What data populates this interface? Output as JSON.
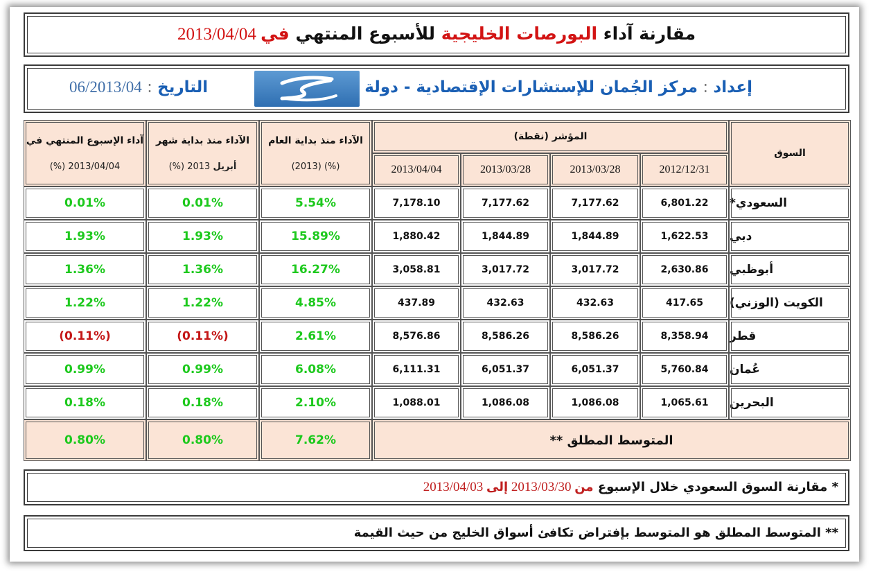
{
  "title": {
    "part1": "مقارنة آداء ",
    "part2": "البورصات الخليجية",
    "part3": " للأسبوع المنتهي ",
    "part4": "في",
    "date": " 2013/04/04"
  },
  "header": {
    "prepared_label": "إعداد",
    "colon": " : ",
    "preparer": "مركز الجُمان للإستشارات الإقتصادية - دولة الكويت",
    "date_label": "التاريخ",
    "date_colon": " : ",
    "date_value": "06/2013/04"
  },
  "table": {
    "col_market": "السوق",
    "col_index_group": "المؤشر (نقطة)",
    "index_dates": [
      "2012/12/31",
      "2013/03/28",
      "2013/03/28",
      "2013/04/04"
    ],
    "col_ytd": "الآداء منذ بداية العام",
    "col_ytd_sub": "(%) (2013)",
    "col_mtd": "الآداء منذ بداية شهر",
    "col_mtd_sub_bold": "أبريل",
    "col_mtd_sub": " 2013 (%)",
    "col_week": "آداء الإسبوع المنتهي في",
    "col_week_sub": "2013/04/04 (%)",
    "rows": [
      {
        "market": "السعودي*",
        "v1": "6,801.22",
        "v2": "7,177.62",
        "v3": "7,177.62",
        "v4": "7,178.10",
        "ytd": "5.54%",
        "mtd": "0.01%",
        "week": "0.01%"
      },
      {
        "market": "دبي",
        "v1": "1,622.53",
        "v2": "1,844.89",
        "v3": "1,844.89",
        "v4": "1,880.42",
        "ytd": "15.89%",
        "mtd": "1.93%",
        "week": "1.93%"
      },
      {
        "market": "أبوظبي",
        "v1": "2,630.86",
        "v2": "3,017.72",
        "v3": "3,017.72",
        "v4": "3,058.81",
        "ytd": "16.27%",
        "mtd": "1.36%",
        "week": "1.36%"
      },
      {
        "market": "الكويت (الوزني)",
        "v1": "417.65",
        "v2": "432.63",
        "v3": "432.63",
        "v4": "437.89",
        "ytd": "4.85%",
        "mtd": "1.22%",
        "week": "1.22%"
      },
      {
        "market": "قطر",
        "v1": "8,358.94",
        "v2": "8,586.26",
        "v3": "8,586.26",
        "v4": "8,576.86",
        "ytd": "2.61%",
        "mtd": "(0.11%)",
        "week": "(0.11%)"
      },
      {
        "market": "عُمان",
        "v1": "5,760.84",
        "v2": "6,051.37",
        "v3": "6,051.37",
        "v4": "6,111.31",
        "ytd": "6.08%",
        "mtd": "0.99%",
        "week": "0.99%"
      },
      {
        "market": "البحرين",
        "v1": "1,065.61",
        "v2": "1,086.08",
        "v3": "1,086.08",
        "v4": "1,088.01",
        "ytd": "2.10%",
        "mtd": "0.18%",
        "week": "0.18%"
      }
    ],
    "avg_label": "المتوسط المطلق **",
    "avg_ytd": "7.62%",
    "avg_mtd": "0.80%",
    "avg_week": "0.80%"
  },
  "notes": {
    "note1_a": "* مقارنة السوق السعودي خلال الإسبوع ",
    "note1_b": "من",
    "note1_c": " 2013/03/30 ",
    "note1_d": "إلى",
    "note1_e": " 2013/04/03",
    "note2": "** المتوسط المطلق هو المتوسط بإفتراض تكافئ أسواق الخليج من حيث القيمة"
  },
  "colors": {
    "positive": "#1dc91d",
    "negative": "#c41717",
    "header_fill": "#fbe4d6",
    "accent_red": "#d21313",
    "accent_blue": "#1a5fb4"
  }
}
